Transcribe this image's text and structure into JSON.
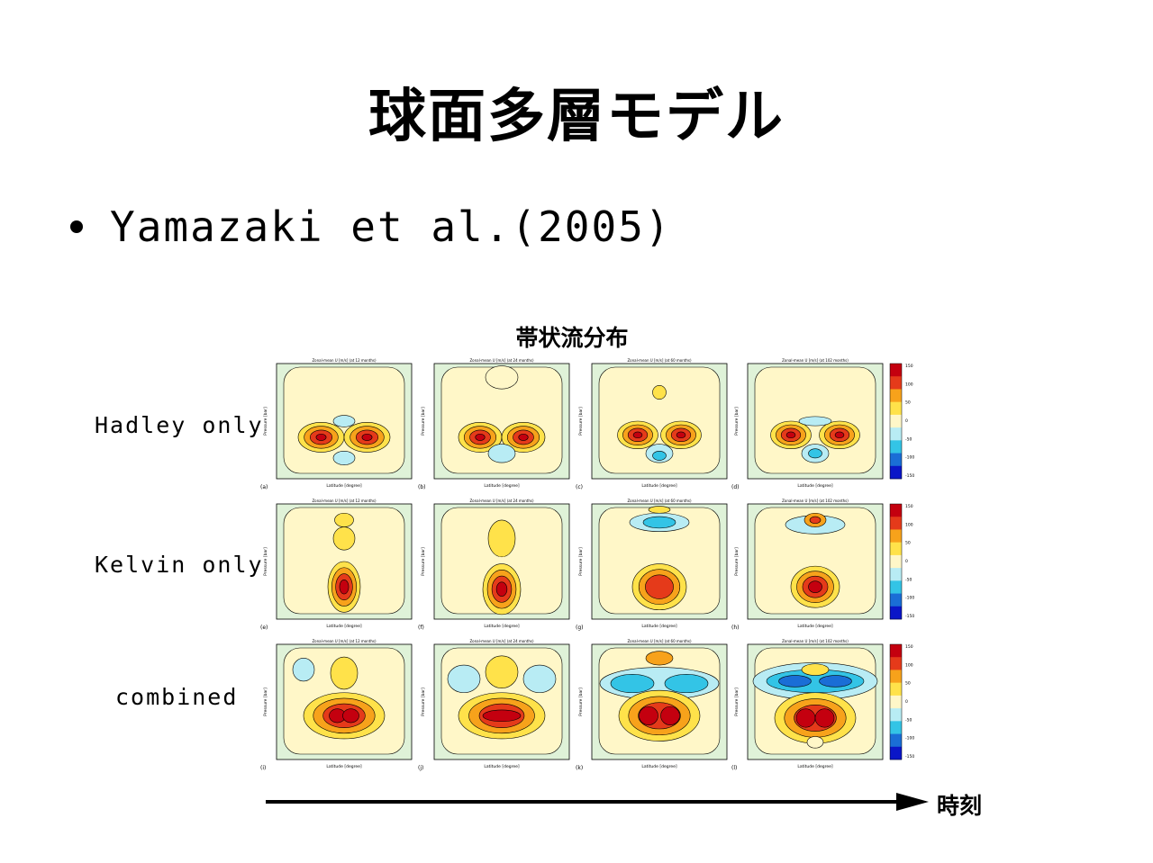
{
  "slide": {
    "title": "球面多層モデル",
    "bullet": "Yamazaki et al.(2005)"
  },
  "figure": {
    "caption": "帯状流分布",
    "row_labels": [
      "Hadley only",
      "Kelvin only",
      "combined"
    ],
    "panel_titles": [
      [
        "Zonal-mean U [m/s] (at 12 months)",
        "Zonal-mean U [m/s] (at 24 months)",
        "Zonal-mean U [m/s] (at 60 months)",
        "Zonal-mean U [m/s] (at 102 months)"
      ],
      [
        "Zonal-mean U [m/s] (at 12 months)",
        "Zonal-mean U [m/s] (at 24 months)",
        "Zonal-mean U [m/s] (at 60 months)",
        "Zonal-mean U [m/s] (at 102 months)"
      ],
      [
        "Zonal-mean U [m/s] (at 12 months)",
        "Zonal-mean U [m/s] (at 24 months)",
        "Zonal-mean U [m/s] (at 60 months)",
        "Zonal-mean U [m/s] (at 102 months)"
      ]
    ],
    "panel_letters": [
      [
        "(a)",
        "(b)",
        "(c)",
        "(d)"
      ],
      [
        "(e)",
        "(f)",
        "(g)",
        "(h)"
      ],
      [
        "(i)",
        "(j)",
        "(k)",
        "(l)"
      ]
    ],
    "xlabel": "Latitude [degree]",
    "ylabel": "Pressure [bar]",
    "colorbar_ticks": [
      "150",
      "100",
      "50",
      "0",
      "-50",
      "-100",
      "-150"
    ],
    "colors": {
      "background": "#dff2d8",
      "zero": "#fff7c8",
      "weak_pos": "#ffe24a",
      "mid_pos": "#f7a21b",
      "strong_pos": "#e53a1a",
      "max_pos": "#c4000f",
      "weak_neg": "#b8ecf4",
      "mid_neg": "#33c4e6",
      "strong_neg": "#1a6ed6",
      "max_neg": "#0a16c8"
    }
  },
  "time_axis": {
    "label": "時刻"
  }
}
